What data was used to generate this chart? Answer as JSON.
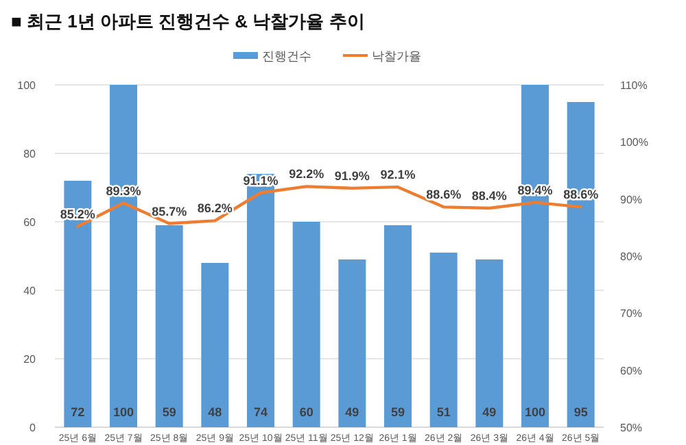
{
  "chart_data": {
    "type": "bar",
    "title": "■ 최근 1년 아파트 진행건수 & 낙찰가율 추이",
    "categories": [
      "25년 6월",
      "25년 7월",
      "25년 8월",
      "25년 9월",
      "25년 10월",
      "25년 11월",
      "25년 12월",
      "26년 1월",
      "26년 2월",
      "26년 3월",
      "26년 4월",
      "26년 5월"
    ],
    "series": [
      {
        "name": "진행건수",
        "color": "#5b9bd5",
        "values": [
          72,
          100,
          59,
          48,
          74,
          60,
          49,
          59,
          51,
          49,
          100,
          95
        ],
        "value_labels": [
          "72",
          "100",
          "59",
          "48",
          "74",
          "60",
          "49",
          "59",
          "51",
          "49",
          "100",
          "95"
        ]
      },
      {
        "name": "낙찰가율",
        "type": "line",
        "axis": "y2",
        "color": "#ed7d31",
        "values": [
          85.2,
          89.3,
          85.7,
          86.2,
          91.1,
          92.2,
          91.9,
          92.1,
          88.6,
          88.4,
          89.4,
          88.6
        ],
        "value_labels": [
          "85.2%",
          "89.3%",
          "85.7%",
          "86.2%",
          "91.1%",
          "92.2%",
          "91.9%",
          "92.1%",
          "88.6%",
          "88.4%",
          "89.4%",
          "88.6%"
        ]
      }
    ],
    "ylim": [
      0,
      100
    ],
    "yticks": [
      0,
      20,
      40,
      60,
      80,
      100
    ],
    "y2lim": [
      50,
      110
    ],
    "y2ticks": [
      {
        "value": 50,
        "label": "50%"
      },
      {
        "value": 60,
        "label": "60%"
      },
      {
        "value": 70,
        "label": "70%"
      },
      {
        "value": 80,
        "label": "80%"
      },
      {
        "value": 90,
        "label": "90%"
      },
      {
        "value": 100,
        "label": "100%"
      },
      {
        "value": 110,
        "label": "110%"
      }
    ],
    "grid": "y",
    "legend": "top",
    "marker": "none",
    "line_style": "solid"
  }
}
